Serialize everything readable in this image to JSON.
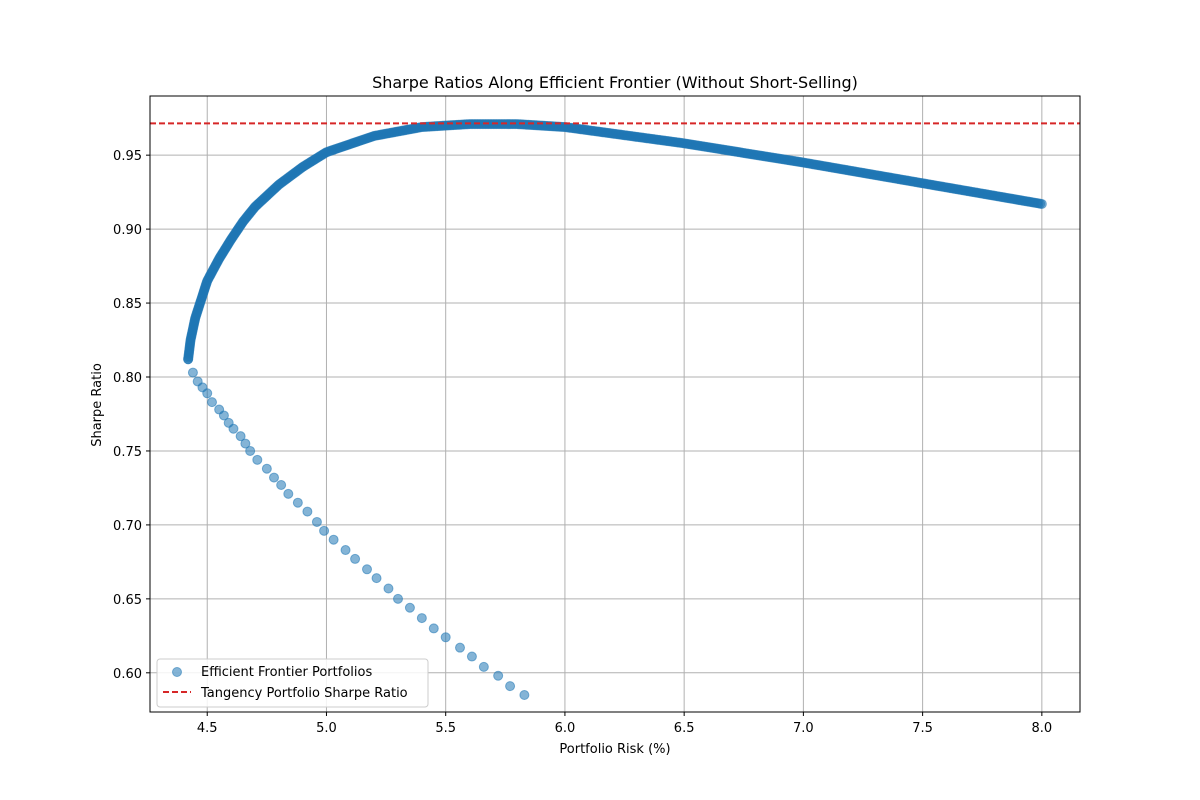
{
  "chart_data": {
    "type": "scatter",
    "title": "Sharpe Ratios Along Efficient Frontier (Without Short-Selling)",
    "xlabel": "Portfolio Risk (%)",
    "ylabel": "Sharpe Ratio",
    "xlim": [
      4.26,
      8.16
    ],
    "ylim": [
      0.5735,
      0.99
    ],
    "x_ticks": [
      4.5,
      5.0,
      5.5,
      6.0,
      6.5,
      7.0,
      7.5,
      8.0
    ],
    "x_tick_labels": [
      "4.5",
      "5.0",
      "5.5",
      "6.0",
      "6.5",
      "7.0",
      "7.5",
      "8.0"
    ],
    "y_ticks": [
      0.6,
      0.65,
      0.7,
      0.75,
      0.8,
      0.85,
      0.9,
      0.95
    ],
    "y_tick_labels": [
      "0.60",
      "0.65",
      "0.70",
      "0.75",
      "0.80",
      "0.85",
      "0.90",
      "0.95"
    ],
    "grid": true,
    "legend_position": "lower-left",
    "series": [
      {
        "name": "Efficient Frontier Portfolios",
        "kind": "scatter",
        "color": "#1f77b4",
        "alpha": 0.55,
        "lower_branch": [
          [
            4.42,
            0.812
          ],
          [
            4.44,
            0.803
          ],
          [
            4.46,
            0.797
          ],
          [
            4.48,
            0.793
          ],
          [
            4.5,
            0.789
          ],
          [
            4.52,
            0.783
          ],
          [
            4.55,
            0.778
          ],
          [
            4.57,
            0.774
          ],
          [
            4.59,
            0.769
          ],
          [
            4.61,
            0.765
          ],
          [
            4.64,
            0.76
          ],
          [
            4.66,
            0.755
          ],
          [
            4.68,
            0.75
          ],
          [
            4.71,
            0.744
          ],
          [
            4.75,
            0.738
          ],
          [
            4.78,
            0.732
          ],
          [
            4.81,
            0.727
          ],
          [
            4.84,
            0.721
          ],
          [
            4.88,
            0.715
          ],
          [
            4.92,
            0.709
          ],
          [
            4.96,
            0.702
          ],
          [
            4.99,
            0.696
          ],
          [
            5.03,
            0.69
          ],
          [
            5.08,
            0.683
          ],
          [
            5.12,
            0.677
          ],
          [
            5.17,
            0.67
          ],
          [
            5.21,
            0.664
          ],
          [
            5.26,
            0.657
          ],
          [
            5.3,
            0.65
          ],
          [
            5.35,
            0.644
          ],
          [
            5.4,
            0.637
          ],
          [
            5.45,
            0.63
          ],
          [
            5.5,
            0.624
          ],
          [
            5.56,
            0.617
          ],
          [
            5.61,
            0.611
          ],
          [
            5.66,
            0.604
          ],
          [
            5.72,
            0.598
          ],
          [
            5.77,
            0.591
          ],
          [
            5.83,
            0.585
          ]
        ],
        "upper_branch_points": [
          [
            4.42,
            0.812
          ],
          [
            4.43,
            0.825
          ],
          [
            4.45,
            0.84
          ],
          [
            4.48,
            0.855
          ],
          [
            4.5,
            0.865
          ],
          [
            4.55,
            0.88
          ],
          [
            4.6,
            0.893
          ],
          [
            4.65,
            0.905
          ],
          [
            4.7,
            0.915
          ],
          [
            4.8,
            0.93
          ],
          [
            4.9,
            0.942
          ],
          [
            5.0,
            0.952
          ],
          [
            5.2,
            0.963
          ],
          [
            5.4,
            0.969
          ],
          [
            5.6,
            0.971
          ],
          [
            5.8,
            0.971
          ],
          [
            6.0,
            0.969
          ],
          [
            6.5,
            0.958
          ],
          [
            7.0,
            0.945
          ],
          [
            7.5,
            0.931
          ],
          [
            8.0,
            0.917
          ]
        ]
      },
      {
        "name": "Tangency Portfolio Sharpe Ratio",
        "kind": "hline",
        "y": 0.9715,
        "color": "#d62728",
        "linestyle": "dashed"
      }
    ]
  }
}
